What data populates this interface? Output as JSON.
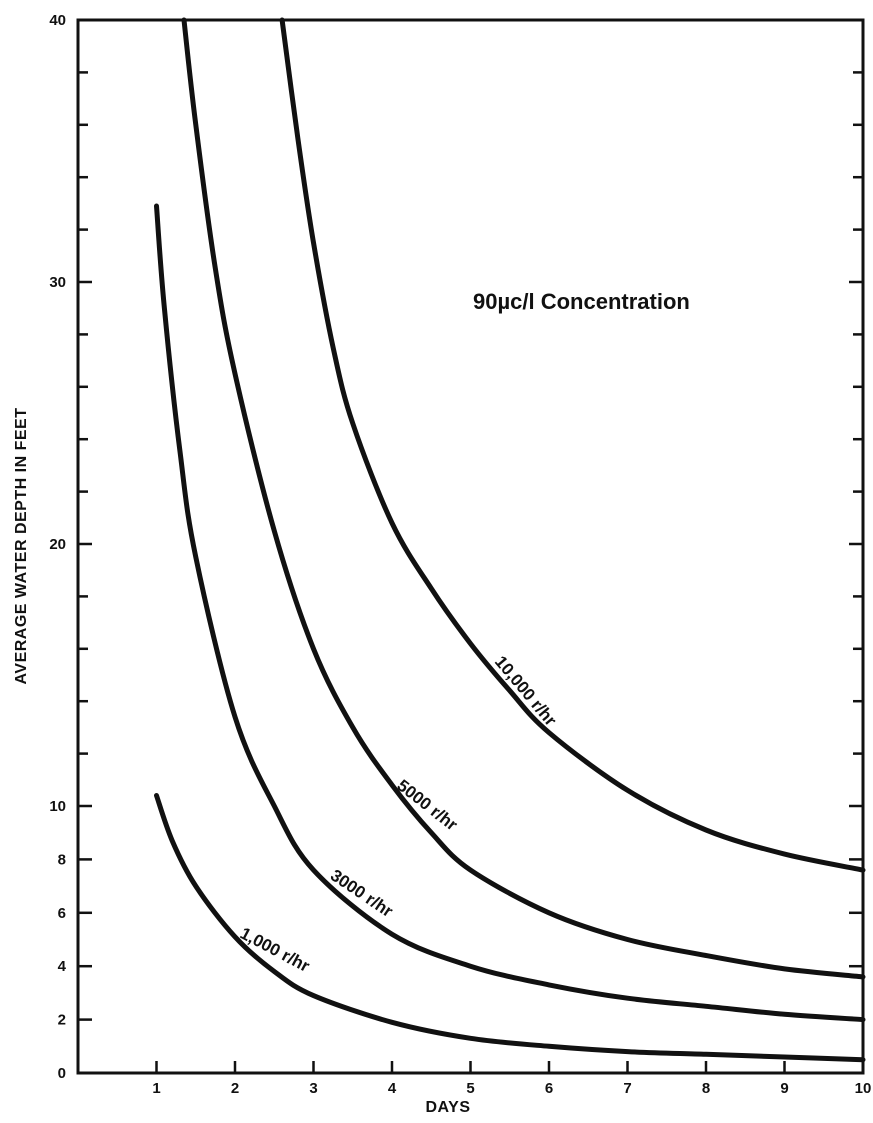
{
  "chart_data": {
    "type": "line",
    "xlabel": "DAYS",
    "ylabel": "AVERAGE WATER DEPTH IN FEET",
    "annotation": "90µc/l Concentration",
    "xlim": [
      0,
      10
    ],
    "ylim": [
      0,
      40
    ],
    "x_ticks": [
      "1",
      "2",
      "3",
      "4",
      "5",
      "6",
      "7",
      "8",
      "9",
      "10"
    ],
    "y_tick_labels": [
      {
        "value": 0,
        "label": "0"
      },
      {
        "value": 2,
        "label": "2"
      },
      {
        "value": 4,
        "label": "4"
      },
      {
        "value": 6,
        "label": "6"
      },
      {
        "value": 8,
        "label": "8"
      },
      {
        "value": 10,
        "label": "10"
      },
      {
        "value": 20,
        "label": "20"
      },
      {
        "value": 30,
        "label": "30"
      },
      {
        "value": 40,
        "label": "40"
      }
    ],
    "grid": false,
    "series": [
      {
        "name": "1,000 r/hr",
        "x": [
          1,
          1.2,
          1.5,
          2,
          2.5,
          3,
          4,
          5,
          6,
          7,
          8,
          9,
          10
        ],
        "y": [
          10.4,
          8.7,
          7.0,
          5.1,
          3.8,
          2.9,
          1.9,
          1.3,
          1.0,
          0.8,
          0.7,
          0.6,
          0.5
        ]
      },
      {
        "name": "3000 r/hr",
        "x": [
          1,
          1.1,
          1.3,
          1.5,
          2,
          2.5,
          3,
          4,
          5,
          6,
          7,
          8,
          9,
          10
        ],
        "y": [
          32.9,
          29.0,
          23.5,
          19.5,
          13.4,
          10.0,
          7.6,
          5.2,
          4.0,
          3.3,
          2.8,
          2.5,
          2.2,
          2.0
        ]
      },
      {
        "name": "5000 r/hr",
        "x": [
          1.35,
          1.5,
          1.75,
          2,
          2.5,
          3,
          3.5,
          4,
          4.5,
          5,
          6,
          7,
          8,
          9,
          10
        ],
        "y": [
          40.0,
          36.0,
          30.5,
          26.5,
          20.5,
          16.0,
          13.0,
          10.8,
          9.0,
          7.6,
          6.0,
          5.0,
          4.4,
          3.9,
          3.6
        ]
      },
      {
        "name": "10,000 r/hr",
        "x": [
          2.6,
          2.8,
          3,
          3.25,
          3.5,
          4,
          4.5,
          5,
          5.5,
          6,
          7,
          8,
          9,
          10
        ],
        "y": [
          40.0,
          35.5,
          31.5,
          27.5,
          24.6,
          20.8,
          18.3,
          16.2,
          14.4,
          12.8,
          10.6,
          9.1,
          8.2,
          7.6
        ]
      }
    ]
  }
}
